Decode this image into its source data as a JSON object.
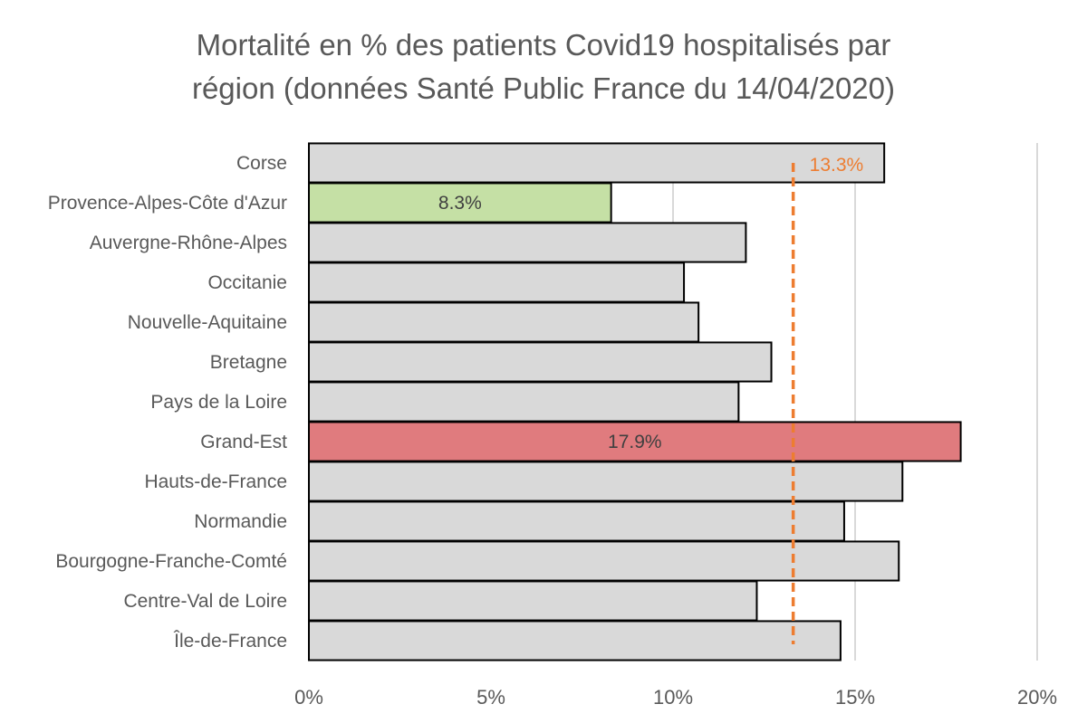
{
  "chart_data": {
    "type": "bar",
    "orientation": "horizontal",
    "title_lines": [
      "Mortalité en % des patients Covid19 hospitalisés par",
      "région (données Santé Public France du 14/04/2020)"
    ],
    "categories": [
      "Corse",
      "Provence-Alpes-Côte d'Azur",
      "Auvergne-Rhône-Alpes",
      "Occitanie",
      "Nouvelle-Aquitaine",
      "Bretagne",
      "Pays de la Loire",
      "Grand-Est",
      "Hauts-de-France",
      "Normandie",
      "Bourgogne-Franche-Comté",
      "Centre-Val de Loire",
      "Île-de-France"
    ],
    "values": [
      15.8,
      8.3,
      12.0,
      10.3,
      10.7,
      12.7,
      11.8,
      17.9,
      16.3,
      14.7,
      16.2,
      12.3,
      14.6
    ],
    "bar_colors": [
      "#d9d9d9",
      "#c5e0a5",
      "#d9d9d9",
      "#d9d9d9",
      "#d9d9d9",
      "#d9d9d9",
      "#d9d9d9",
      "#e07b7e",
      "#d9d9d9",
      "#d9d9d9",
      "#d9d9d9",
      "#d9d9d9",
      "#d9d9d9"
    ],
    "data_labels": {
      "1": "8.3%",
      "7": "17.9%"
    },
    "reference_line": {
      "value": 13.3,
      "label": "13.3%",
      "color": "#ed7d31",
      "style": "dashed"
    },
    "xlim": [
      0,
      20
    ],
    "xticks": [
      0,
      5,
      10,
      15,
      20
    ],
    "xtick_labels": [
      "0%",
      "5%",
      "10%",
      "15%",
      "20%"
    ],
    "xlabel": "",
    "ylabel": "",
    "grid": "vertical",
    "legend": "none"
  }
}
